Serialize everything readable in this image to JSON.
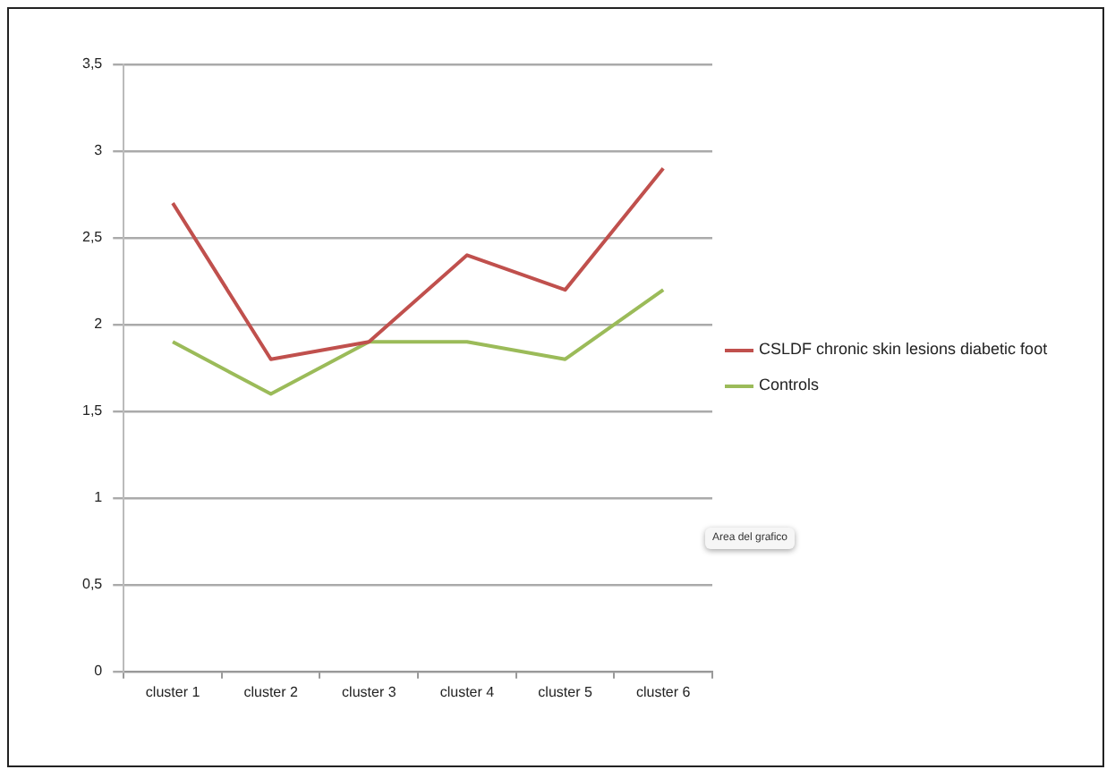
{
  "chart_data": {
    "type": "line",
    "categories": [
      "cluster 1",
      "cluster 2",
      "cluster 3",
      "cluster 4",
      "cluster 5",
      "cluster 6"
    ],
    "series": [
      {
        "name": "CSLDF chronic skin lesions diabetic foot",
        "color": "#c0504d",
        "values": [
          2.7,
          1.8,
          1.9,
          2.4,
          2.2,
          2.9
        ]
      },
      {
        "name": "Controls",
        "color": "#9bbb59",
        "values": [
          1.9,
          1.6,
          1.9,
          1.9,
          1.8,
          2.2
        ]
      }
    ],
    "ylim": [
      0,
      3.5
    ],
    "yticks": [
      0,
      {
        "value": 0.5,
        "label": "0,5"
      },
      1,
      {
        "value": 1.5,
        "label": "1,5"
      },
      2,
      {
        "value": 2.5,
        "label": "2,5"
      },
      3,
      {
        "value": 3.5,
        "label": "3,5"
      }
    ],
    "grid": "y",
    "legend": "right",
    "marker": "none",
    "line_style": "solid",
    "annotations": [
      "Area del grafico"
    ]
  }
}
